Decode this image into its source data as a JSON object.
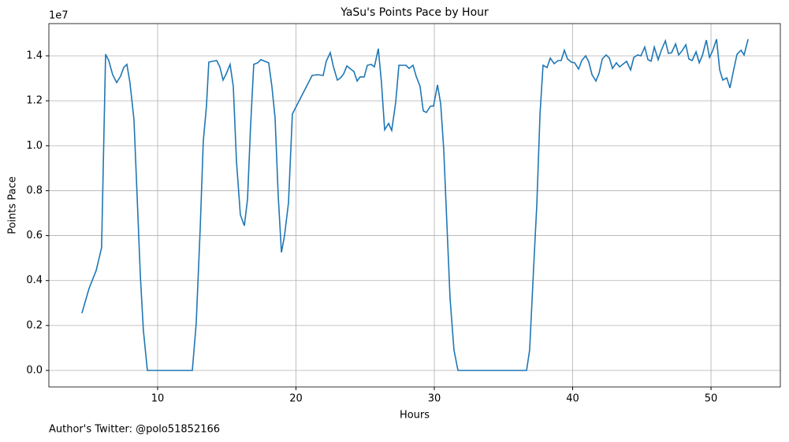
{
  "chart_data": {
    "type": "line",
    "title": "YaSu's Points Pace by Hour",
    "x_label": "Hours",
    "y_label": "Points Pace",
    "y_offset_label": "1e7",
    "footnote": "Author's Twitter: @polo51852166",
    "xlim": [
      2.14,
      55.01
    ],
    "ylim": [
      -0.0735,
      1.5435
    ],
    "xticks": [
      10,
      20,
      30,
      40,
      50
    ],
    "yticks": [
      {
        "value": 0,
        "label": "0.0"
      },
      0.2,
      0.4,
      0.6,
      0.8,
      {
        "value": 1,
        "label": "1.0"
      },
      1.2,
      1.4
    ],
    "grid": true,
    "x": [
      4.53,
      5.04,
      5.56,
      5.95,
      6.24,
      6.47,
      6.75,
      7.04,
      7.32,
      7.55,
      7.78,
      8.0,
      8.29,
      8.52,
      8.75,
      8.97,
      9.26,
      12.51,
      12.79,
      13.08,
      13.3,
      13.53,
      13.7,
      13.99,
      14.27,
      14.5,
      14.73,
      14.96,
      15.24,
      15.47,
      15.7,
      15.98,
      16.27,
      16.5,
      16.72,
      16.95,
      17.24,
      17.46,
      17.75,
      18.03,
      18.26,
      18.49,
      18.72,
      18.95,
      19.17,
      19.46,
      19.74,
      21.17,
      21.57,
      21.97,
      22.19,
      22.48,
      22.71,
      22.99,
      23.22,
      23.45,
      23.68,
      23.96,
      24.19,
      24.42,
      24.64,
      24.93,
      25.16,
      25.44,
      25.67,
      25.95,
      26.18,
      26.41,
      26.7,
      26.92,
      27.21,
      27.44,
      27.72,
      27.95,
      28.18,
      28.46,
      28.69,
      28.97,
      29.2,
      29.43,
      29.72,
      29.94,
      30.23,
      30.46,
      30.68,
      30.91,
      31.14,
      31.42,
      31.71,
      36.67,
      36.89,
      37.18,
      37.41,
      37.64,
      37.86,
      38.15,
      38.38,
      38.66,
      38.95,
      39.17,
      39.4,
      39.63,
      39.91,
      40.14,
      40.43,
      40.66,
      40.94,
      41.17,
      41.4,
      41.68,
      41.91,
      42.14,
      42.42,
      42.65,
      42.88,
      43.16,
      43.39,
      43.68,
      43.9,
      44.19,
      44.42,
      44.7,
      44.93,
      45.21,
      45.44,
      45.67,
      45.9,
      46.18,
      46.41,
      46.7,
      46.92,
      47.15,
      47.44,
      47.66,
      47.89,
      48.18,
      48.4,
      48.63,
      48.92,
      49.15,
      49.37,
      49.66,
      49.89,
      50.11,
      50.4,
      50.63,
      50.85,
      51.14,
      51.37,
      51.6,
      51.88,
      52.17,
      52.39,
      52.68
    ],
    "series": [
      {
        "name": "Points Pace",
        "color": "#1f77b4",
        "values": [
          0.255,
          0.364,
          0.445,
          0.546,
          1.407,
          1.379,
          1.316,
          1.281,
          1.309,
          1.348,
          1.362,
          1.281,
          1.117,
          0.774,
          0.424,
          0.179,
          0,
          0,
          0.21,
          0.634,
          1.019,
          1.176,
          1.372,
          1.376,
          1.379,
          1.351,
          1.292,
          1.32,
          1.362,
          1.264,
          0.931,
          0.693,
          0.644,
          0.763,
          1.089,
          1.362,
          1.369,
          1.383,
          1.376,
          1.369,
          1.264,
          1.124,
          0.774,
          0.525,
          0.599,
          0.746,
          1.141,
          1.313,
          1.316,
          1.313,
          1.376,
          1.414,
          1.351,
          1.292,
          1.302,
          1.32,
          1.355,
          1.341,
          1.33,
          1.288,
          1.306,
          1.306,
          1.358,
          1.362,
          1.351,
          1.432,
          1.281,
          1.071,
          1.099,
          1.068,
          1.194,
          1.358,
          1.358,
          1.358,
          1.344,
          1.358,
          1.309,
          1.264,
          1.155,
          1.148,
          1.176,
          1.176,
          1.271,
          1.187,
          0.984,
          0.651,
          0.319,
          0.091,
          0,
          0,
          0.091,
          0.459,
          0.739,
          1.141,
          1.358,
          1.348,
          1.39,
          1.365,
          1.379,
          1.379,
          1.425,
          1.386,
          1.372,
          1.369,
          1.341,
          1.379,
          1.4,
          1.372,
          1.316,
          1.288,
          1.323,
          1.386,
          1.404,
          1.39,
          1.344,
          1.369,
          1.351,
          1.365,
          1.376,
          1.337,
          1.393,
          1.404,
          1.4,
          1.439,
          1.383,
          1.376,
          1.439,
          1.383,
          1.425,
          1.467,
          1.411,
          1.414,
          1.453,
          1.404,
          1.421,
          1.449,
          1.386,
          1.379,
          1.418,
          1.369,
          1.4,
          1.47,
          1.393,
          1.421,
          1.474,
          1.337,
          1.292,
          1.302,
          1.257,
          1.327,
          1.407,
          1.425,
          1.404,
          1.474
        ]
      }
    ]
  }
}
